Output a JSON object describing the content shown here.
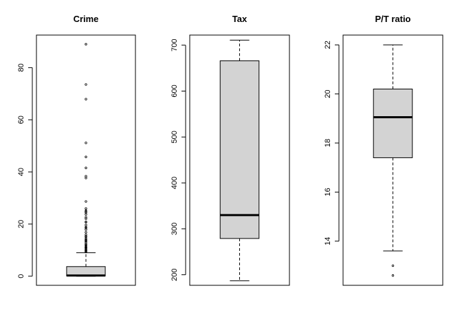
{
  "chart_data": [
    {
      "type": "boxplot",
      "title": "Crime",
      "ylim": [
        -3.5,
        92.5
      ],
      "yticks": [
        0,
        20,
        40,
        60,
        80
      ],
      "grid": false,
      "stats": {
        "min": 0.006,
        "q1": 0.08,
        "median": 0.26,
        "q3": 3.68,
        "whisker_high": 9.0
      },
      "outliers": [
        88.98,
        73.53,
        67.92,
        51.14,
        45.75,
        41.53,
        38.35,
        37.66,
        28.66,
        25.94,
        25.05,
        24.39,
        24.8,
        23.65,
        22.6,
        22.05,
        20.85,
        20.71,
        19.61,
        18.81,
        18.5,
        17.87,
        16.81,
        15.88,
        15.29,
        15.02,
        14.33,
        14.05,
        13.68,
        13.52,
        13.36,
        12.8,
        12.25,
        12.05,
        11.95,
        11.58,
        11.17,
        11.11,
        10.84,
        10.83,
        10.67,
        10.23,
        10.06,
        9.97,
        9.92,
        9.59,
        9.39,
        9.33
      ]
    },
    {
      "type": "boxplot",
      "title": "Tax",
      "ylim": [
        177,
        722
      ],
      "yticks": [
        200,
        300,
        400,
        500,
        600,
        700
      ],
      "grid": false,
      "stats": {
        "min": 187,
        "q1": 279,
        "median": 330,
        "q3": 666,
        "whisker_high": 711
      },
      "outliers": []
    },
    {
      "type": "boxplot",
      "title": "P/T ratio",
      "ylim": [
        12.2,
        22.4
      ],
      "yticks": [
        14,
        16,
        18,
        20,
        22
      ],
      "grid": false,
      "stats": {
        "min": 13.6,
        "q1": 17.4,
        "median": 19.05,
        "q3": 20.2,
        "whisker_high": 22.0
      },
      "outliers": [
        13.0,
        12.6
      ]
    }
  ]
}
